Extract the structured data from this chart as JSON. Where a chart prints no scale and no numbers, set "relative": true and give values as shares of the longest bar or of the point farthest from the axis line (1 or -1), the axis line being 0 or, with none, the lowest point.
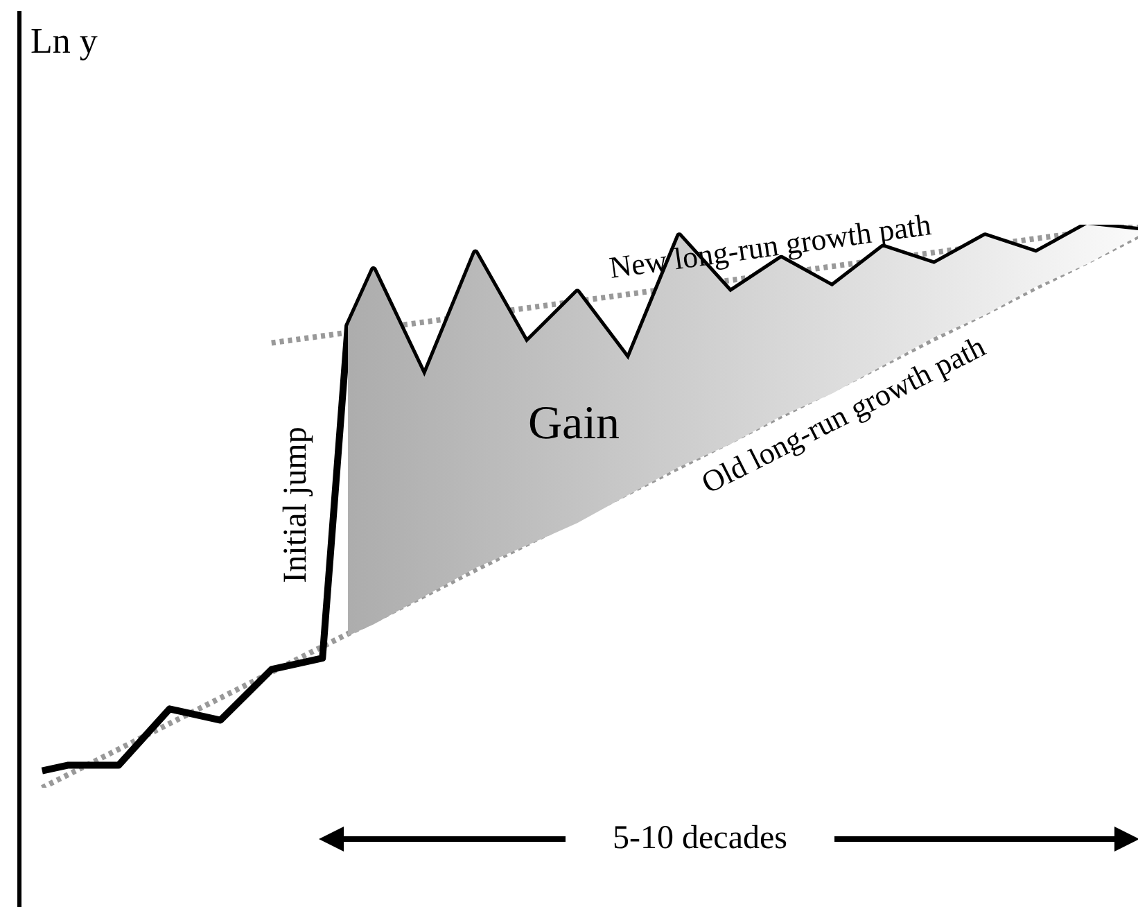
{
  "chart_data": {
    "type": "line",
    "ylabel": "Ln y",
    "relative": true,
    "marker": "none",
    "categories": [
      null,
      null,
      null,
      null,
      null,
      null,
      null,
      null,
      null,
      null,
      null,
      null,
      null,
      null,
      null,
      null,
      null,
      null,
      null,
      null,
      null,
      null,
      null,
      null,
      null,
      null,
      null,
      null,
      null,
      null,
      null,
      null,
      null,
      null,
      null,
      null,
      null,
      null,
      null,
      null,
      null,
      null,
      null,
      null,
      null
    ],
    "series": [
      {
        "color": "#000000",
        "line_style": "solid",
        "values": [
          null,
          0.03,
          0.04,
          null,
          0.04,
          null,
          0.14,
          null,
          0.12,
          null,
          0.21,
          null,
          0.23,
          0.82,
          0.92,
          null,
          0.73,
          null,
          0.95,
          null,
          0.79,
          null,
          0.88,
          null,
          0.76,
          null,
          0.98,
          null,
          0.88,
          null,
          0.94,
          null,
          0.89,
          null,
          0.96,
          null,
          0.93,
          null,
          0.98,
          null,
          0.95,
          null,
          1,
          null,
          0.99
        ],
        "lower": [
          null,
          null,
          null,
          null,
          null,
          null,
          null,
          null,
          null,
          null,
          null,
          null,
          null,
          0.27,
          0.29,
          null,
          0.34,
          null,
          0.39,
          null,
          0.43,
          null,
          0.47,
          null,
          0.52,
          null,
          0.57,
          null,
          0.61,
          null,
          0.66,
          null,
          0.7,
          null,
          0.75,
          null,
          0.8,
          null,
          0.84,
          null,
          0.89,
          null,
          0.93,
          null,
          0.98
        ],
        "upper": [
          null,
          null,
          null,
          null,
          null,
          null,
          null,
          null,
          null,
          null,
          null,
          null,
          null,
          0.82,
          0.92,
          null,
          0.73,
          null,
          0.95,
          null,
          0.79,
          null,
          0.88,
          null,
          0.76,
          null,
          0.98,
          null,
          0.88,
          null,
          0.94,
          null,
          0.89,
          null,
          0.96,
          null,
          0.93,
          null,
          0.98,
          null,
          0.95,
          null,
          1,
          null,
          0.99
        ]
      },
      {
        "name": "New long-run growth path",
        "color": "#999999",
        "line_style": "dotted",
        "values": [
          null,
          null,
          null,
          null,
          null,
          null,
          null,
          null,
          null,
          null,
          0.79,
          null,
          null,
          null,
          null,
          null,
          null,
          null,
          null,
          null,
          null,
          null,
          null,
          null,
          null,
          null,
          null,
          null,
          null,
          null,
          null,
          null,
          null,
          null,
          null,
          null,
          null,
          null,
          null,
          null,
          null,
          null,
          null,
          null,
          1
        ]
      },
      {
        "name": "Old long-run growth path",
        "color": "#999999",
        "line_style": "dotted",
        "values": [
          null,
          0,
          null,
          null,
          null,
          null,
          null,
          null,
          null,
          null,
          null,
          null,
          null,
          null,
          null,
          null,
          null,
          null,
          null,
          null,
          null,
          null,
          null,
          null,
          null,
          null,
          null,
          null,
          null,
          null,
          null,
          null,
          null,
          null,
          null,
          null,
          null,
          null,
          null,
          null,
          null,
          null,
          null,
          null,
          0.98
        ]
      }
    ],
    "annotations": [
      "Initial jump",
      "Gain",
      "5-10 decades"
    ]
  }
}
